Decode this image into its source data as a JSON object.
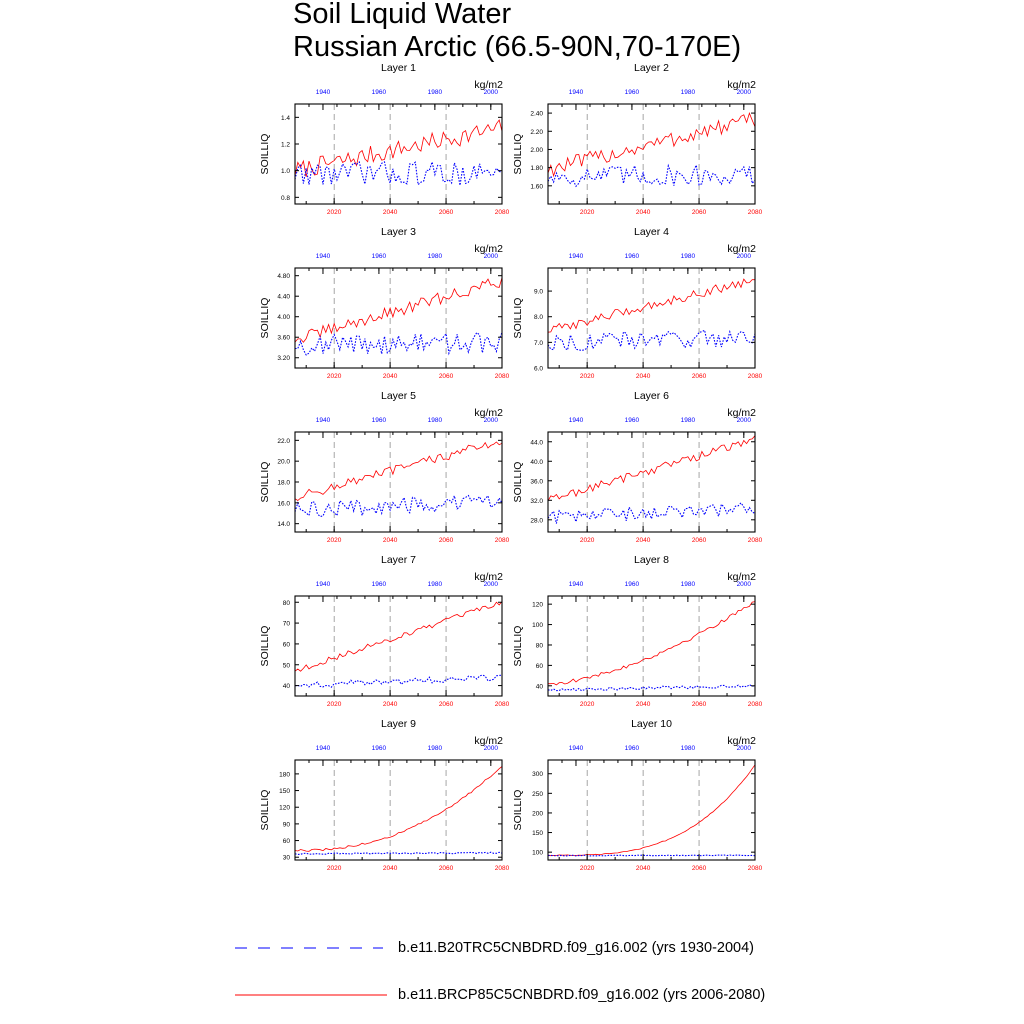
{
  "title": {
    "line1": "Soil Liquid Water",
    "line2": "Russian Arctic (66.5-90N,70-170E)"
  },
  "legend": {
    "hist_label": "b.e11.B20TRC5CNBDRD.f09_g16.002 (yrs 1930-2004)",
    "future_label": "b.e11.BRCP85C5CNBDRD.f09_g16.002 (yrs 2006-2080)"
  },
  "colors": {
    "historical": "#0000ff",
    "future": "#ff0000",
    "axis": "#000000",
    "grid": "#808080"
  },
  "chart_data": [
    {
      "type": "line",
      "layer": "Layer 1",
      "units": "kg/m2",
      "ylabel": "SOILLIQ",
      "ylim": [
        0.75,
        1.5
      ],
      "yticks": [
        0.8,
        1.0,
        1.2,
        1.4
      ],
      "ytick_labels": [
        "0.8",
        "1.0",
        "1.2",
        "1.4"
      ],
      "x_bottom": {
        "range": [
          2006,
          2080
        ],
        "ticks": [
          2020,
          2040,
          2060,
          2080
        ],
        "tick_labels": [
          "2020",
          "2040",
          "2060",
          "2080"
        ]
      },
      "x_top": {
        "range": [
          1930,
          2004
        ],
        "ticks": [
          1940,
          1960,
          1980,
          2000
        ],
        "tick_labels": [
          "1940",
          "1960",
          "1980",
          "2000"
        ]
      },
      "series": [
        {
          "name": "b.e11.BRCP85C5CNBDRD.f09_g16.002 (yrs 2006-2080)",
          "style": "solid",
          "start": 1.0,
          "end": 1.32,
          "amp": 0.07
        },
        {
          "name": "b.e11.B20TRC5CNBDRD.f09_g16.002 (yrs 1930-2004)",
          "style": "dotted",
          "start": 0.98,
          "end": 0.98,
          "amp": 0.09
        }
      ]
    },
    {
      "type": "line",
      "layer": "Layer 2",
      "units": "kg/m2",
      "ylabel": "SOILLIQ",
      "ylim": [
        1.4,
        2.5
      ],
      "yticks": [
        1.6,
        1.8,
        2.0,
        2.2,
        2.4
      ],
      "ytick_labels": [
        "1.60",
        "1.80",
        "2.00",
        "2.20",
        "2.40"
      ],
      "x_bottom": {
        "range": [
          2006,
          2080
        ],
        "ticks": [
          2020,
          2040,
          2060,
          2080
        ],
        "tick_labels": [
          "2020",
          "2040",
          "2060",
          "2080"
        ]
      },
      "x_top": {
        "range": [
          1930,
          2004
        ],
        "ticks": [
          1940,
          1960,
          1980,
          2000
        ],
        "tick_labels": [
          "1940",
          "1960",
          "1980",
          "2000"
        ]
      },
      "series": [
        {
          "name": "b.e11.BRCP85C5CNBDRD.f09_g16.002 (yrs 2006-2080)",
          "style": "solid",
          "start": 1.78,
          "end": 2.33,
          "amp": 0.09
        },
        {
          "name": "b.e11.B20TRC5CNBDRD.f09_g16.002 (yrs 1930-2004)",
          "style": "dotted",
          "start": 1.7,
          "end": 1.72,
          "amp": 0.12
        }
      ]
    },
    {
      "type": "line",
      "layer": "Layer 3",
      "units": "kg/m2",
      "ylabel": "SOILLIQ",
      "ylim": [
        3.0,
        4.95
      ],
      "yticks": [
        3.2,
        3.6,
        4.0,
        4.4,
        4.8
      ],
      "ytick_labels": [
        "3.20",
        "3.60",
        "4.00",
        "4.40",
        "4.80"
      ],
      "x_bottom": {
        "range": [
          2006,
          2080
        ],
        "ticks": [
          2020,
          2040,
          2060,
          2080
        ],
        "tick_labels": [
          "2020",
          "2040",
          "2060",
          "2080"
        ]
      },
      "x_top": {
        "range": [
          1930,
          2004
        ],
        "ticks": [
          1940,
          1960,
          1980,
          2000
        ],
        "tick_labels": [
          "1940",
          "1960",
          "1980",
          "2000"
        ]
      },
      "series": [
        {
          "name": "b.e11.BRCP85C5CNBDRD.f09_g16.002 (yrs 2006-2080)",
          "style": "solid",
          "start": 3.55,
          "end": 4.7,
          "amp": 0.12
        },
        {
          "name": "b.e11.B20TRC5CNBDRD.f09_g16.002 (yrs 1930-2004)",
          "style": "dotted",
          "start": 3.45,
          "end": 3.5,
          "amp": 0.2
        }
      ]
    },
    {
      "type": "line",
      "layer": "Layer 4",
      "units": "kg/m2",
      "ylabel": "SOILLIQ",
      "ylim": [
        6.0,
        9.9
      ],
      "yticks": [
        6.0,
        7.0,
        8.0,
        9.0
      ],
      "ytick_labels": [
        "6.0",
        "7.0",
        "8.0",
        "9.0"
      ],
      "x_bottom": {
        "range": [
          2006,
          2080
        ],
        "ticks": [
          2020,
          2040,
          2060,
          2080
        ],
        "tick_labels": [
          "2020",
          "2040",
          "2060",
          "2080"
        ]
      },
      "x_top": {
        "range": [
          1930,
          2004
        ],
        "ticks": [
          1940,
          1960,
          1980,
          2000
        ],
        "tick_labels": [
          "1940",
          "1960",
          "1980",
          "2000"
        ]
      },
      "series": [
        {
          "name": "b.e11.BRCP85C5CNBDRD.f09_g16.002 (yrs 2006-2080)",
          "style": "solid",
          "start": 7.45,
          "end": 9.45,
          "amp": 0.18
        },
        {
          "name": "b.e11.B20TRC5CNBDRD.f09_g16.002 (yrs 1930-2004)",
          "style": "dotted",
          "start": 7.0,
          "end": 7.2,
          "amp": 0.35
        }
      ]
    },
    {
      "type": "line",
      "layer": "Layer 5",
      "units": "kg/m2",
      "ylabel": "SOILLIQ",
      "ylim": [
        13.2,
        22.8
      ],
      "yticks": [
        14.0,
        16.0,
        18.0,
        20.0,
        22.0
      ],
      "ytick_labels": [
        "14.0",
        "16.0",
        "18.0",
        "20.0",
        "22.0"
      ],
      "x_bottom": {
        "range": [
          2006,
          2080
        ],
        "ticks": [
          2020,
          2040,
          2060,
          2080
        ],
        "tick_labels": [
          "2020",
          "2040",
          "2060",
          "2080"
        ]
      },
      "x_top": {
        "range": [
          1930,
          2004
        ],
        "ticks": [
          1940,
          1960,
          1980,
          2000
        ],
        "tick_labels": [
          "1940",
          "1960",
          "1980",
          "2000"
        ]
      },
      "series": [
        {
          "name": "b.e11.BRCP85C5CNBDRD.f09_g16.002 (yrs 2006-2080)",
          "style": "solid",
          "start": 16.5,
          "end": 22.0,
          "amp": 0.45
        },
        {
          "name": "b.e11.B20TRC5CNBDRD.f09_g16.002 (yrs 1930-2004)",
          "style": "dotted",
          "start": 15.3,
          "end": 16.1,
          "amp": 0.8
        }
      ]
    },
    {
      "type": "line",
      "layer": "Layer 6",
      "units": "kg/m2",
      "ylabel": "SOILLIQ",
      "ylim": [
        25.5,
        46.0
      ],
      "yticks": [
        28.0,
        32.0,
        36.0,
        40.0,
        44.0
      ],
      "ytick_labels": [
        "28.0",
        "32.0",
        "36.0",
        "40.0",
        "44.0"
      ],
      "x_bottom": {
        "range": [
          2006,
          2080
        ],
        "ticks": [
          2020,
          2040,
          2060,
          2080
        ],
        "tick_labels": [
          "2020",
          "2040",
          "2060",
          "2080"
        ]
      },
      "x_top": {
        "range": [
          1930,
          2004
        ],
        "ticks": [
          1940,
          1960,
          1980,
          2000
        ],
        "tick_labels": [
          "1940",
          "1960",
          "1980",
          "2000"
        ]
      },
      "series": [
        {
          "name": "b.e11.BRCP85C5CNBDRD.f09_g16.002 (yrs 2006-2080)",
          "style": "solid",
          "start": 32.0,
          "end": 44.5,
          "amp": 0.9
        },
        {
          "name": "b.e11.B20TRC5CNBDRD.f09_g16.002 (yrs 1930-2004)",
          "style": "dotted",
          "start": 28.5,
          "end": 30.3,
          "amp": 1.4
        }
      ]
    },
    {
      "type": "line",
      "layer": "Layer 7",
      "units": "kg/m2",
      "ylabel": "SOILLIQ",
      "ylim": [
        35,
        83
      ],
      "yticks": [
        40,
        50,
        60,
        70,
        80
      ],
      "ytick_labels": [
        "40",
        "50",
        "60",
        "70",
        "80"
      ],
      "x_bottom": {
        "range": [
          2006,
          2080
        ],
        "ticks": [
          2020,
          2040,
          2060,
          2080
        ],
        "tick_labels": [
          "2020",
          "2040",
          "2060",
          "2080"
        ]
      },
      "x_top": {
        "range": [
          1930,
          2004
        ],
        "ticks": [
          1940,
          1960,
          1980,
          2000
        ],
        "tick_labels": [
          "1940",
          "1960",
          "1980",
          "2000"
        ]
      },
      "series": [
        {
          "name": "b.e11.BRCP85C5CNBDRD.f09_g16.002 (yrs 2006-2080)",
          "style": "solid",
          "start": 47,
          "end": 80,
          "amp": 1.3
        },
        {
          "name": "b.e11.B20TRC5CNBDRD.f09_g16.002 (yrs 1930-2004)",
          "style": "dotted",
          "start": 40,
          "end": 44,
          "amp": 1.5
        }
      ]
    },
    {
      "type": "line",
      "layer": "Layer 8",
      "units": "kg/m2",
      "ylabel": "SOILLIQ",
      "ylim": [
        30,
        128
      ],
      "yticks": [
        40,
        60,
        80,
        100,
        120
      ],
      "ytick_labels": [
        "40",
        "60",
        "80",
        "100",
        "120"
      ],
      "x_bottom": {
        "range": [
          2006,
          2080
        ],
        "ticks": [
          2020,
          2040,
          2060,
          2080
        ],
        "tick_labels": [
          "2020",
          "2040",
          "2060",
          "2080"
        ]
      },
      "x_top": {
        "range": [
          1930,
          2004
        ],
        "ticks": [
          1940,
          1960,
          1980,
          2000
        ],
        "tick_labels": [
          "1940",
          "1960",
          "1980",
          "2000"
        ]
      },
      "series": [
        {
          "name": "b.e11.BRCP85C5CNBDRD.f09_g16.002 (yrs 2006-2080)",
          "style": "solid",
          "start": 42,
          "end": 123,
          "amp": 1.8,
          "curve": 1.6
        },
        {
          "name": "b.e11.B20TRC5CNBDRD.f09_g16.002 (yrs 1930-2004)",
          "style": "dotted",
          "start": 36,
          "end": 40,
          "amp": 1.5
        }
      ]
    },
    {
      "type": "line",
      "layer": "Layer 9",
      "units": "kg/m2",
      "ylabel": "SOILLIQ",
      "ylim": [
        25,
        205
      ],
      "yticks": [
        30,
        60,
        90,
        120,
        150,
        180
      ],
      "ytick_labels": [
        "30",
        "60",
        "90",
        "120",
        "150",
        "180"
      ],
      "x_bottom": {
        "range": [
          2006,
          2080
        ],
        "ticks": [
          2020,
          2040,
          2060,
          2080
        ],
        "tick_labels": [
          "2020",
          "2040",
          "2060",
          "2080"
        ]
      },
      "x_top": {
        "range": [
          1930,
          2004
        ],
        "ticks": [
          1940,
          1960,
          1980,
          2000
        ],
        "tick_labels": [
          "1940",
          "1960",
          "1980",
          "2000"
        ]
      },
      "series": [
        {
          "name": "b.e11.BRCP85C5CNBDRD.f09_g16.002 (yrs 2006-2080)",
          "style": "solid",
          "start": 42,
          "end": 195,
          "amp": 2.0,
          "curve": 2.3
        },
        {
          "name": "b.e11.B20TRC5CNBDRD.f09_g16.002 (yrs 1930-2004)",
          "style": "dotted",
          "start": 36,
          "end": 38,
          "amp": 1.2
        }
      ]
    },
    {
      "type": "line",
      "layer": "Layer 10",
      "units": "kg/m2",
      "ylabel": "SOILLIQ",
      "ylim": [
        80,
        335
      ],
      "yticks": [
        100,
        150,
        200,
        250,
        300
      ],
      "ytick_labels": [
        "100",
        "150",
        "200",
        "250",
        "300"
      ],
      "x_bottom": {
        "range": [
          2006,
          2080
        ],
        "ticks": [
          2020,
          2040,
          2060,
          2080
        ],
        "tick_labels": [
          "2020",
          "2040",
          "2060",
          "2080"
        ]
      },
      "x_top": {
        "range": [
          1930,
          2004
        ],
        "ticks": [
          1940,
          1960,
          1980,
          2000
        ],
        "tick_labels": [
          "1940",
          "1960",
          "1980",
          "2000"
        ]
      },
      "series": [
        {
          "name": "b.e11.BRCP85C5CNBDRD.f09_g16.002 (yrs 2006-2080)",
          "style": "solid",
          "start": 92,
          "end": 322,
          "amp": 1.2,
          "curve": 3.2
        },
        {
          "name": "b.e11.B20TRC5CNBDRD.f09_g16.002 (yrs 1930-2004)",
          "style": "dotted",
          "start": 91,
          "end": 92,
          "amp": 1.0
        }
      ]
    }
  ]
}
